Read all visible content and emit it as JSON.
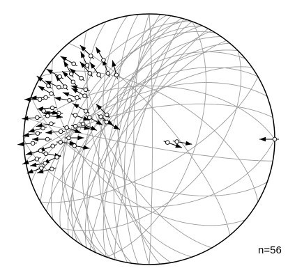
{
  "diagram": {
    "type": "stereonet",
    "count_label": "n=56",
    "colors": {
      "primitive_circle": "#000000",
      "great_circles": "#9a9a9a",
      "pole_fill": "#ffffff",
      "arrow": "#000000"
    },
    "great_circles": [
      {
        "strike": 190,
        "dip": 70
      },
      {
        "strike": 195,
        "dip": 65
      },
      {
        "strike": 200,
        "dip": 72
      },
      {
        "strike": 205,
        "dip": 60
      },
      {
        "strike": 210,
        "dip": 68
      },
      {
        "strike": 185,
        "dip": 75
      },
      {
        "strike": 215,
        "dip": 55
      },
      {
        "strike": 220,
        "dip": 62
      },
      {
        "strike": 180,
        "dip": 80
      },
      {
        "strike": 198,
        "dip": 50
      },
      {
        "strike": 205,
        "dip": 45
      },
      {
        "strike": 212,
        "dip": 40
      },
      {
        "strike": 225,
        "dip": 58
      },
      {
        "strike": 230,
        "dip": 48
      },
      {
        "strike": 188,
        "dip": 58
      },
      {
        "strike": 200,
        "dip": 35
      },
      {
        "strike": 235,
        "dip": 66
      },
      {
        "strike": 175,
        "dip": 70
      },
      {
        "strike": 170,
        "dip": 62
      },
      {
        "strike": 240,
        "dip": 55
      },
      {
        "strike": 196,
        "dip": 82
      },
      {
        "strike": 208,
        "dip": 78
      },
      {
        "strike": 218,
        "dip": 74
      },
      {
        "strike": 250,
        "dip": 60
      },
      {
        "strike": 160,
        "dip": 55
      },
      {
        "strike": 260,
        "dip": 70
      },
      {
        "strike": 150,
        "dip": 65
      },
      {
        "strike": 270,
        "dip": 55
      },
      {
        "strike": 300,
        "dip": 60
      },
      {
        "strike": 130,
        "dip": 50
      },
      {
        "strike": 110,
        "dip": 60
      },
      {
        "strike": 90,
        "dip": 45
      },
      {
        "strike": 320,
        "dip": 75
      },
      {
        "strike": 20,
        "dip": 60
      },
      {
        "strike": 45,
        "dip": 50
      },
      {
        "strike": 0,
        "dip": 88
      },
      {
        "strike": 100,
        "dip": 85
      },
      {
        "strike": 60,
        "dip": 70
      }
    ],
    "poles": [
      {
        "trend": 290,
        "plunge": 8,
        "arrow": 270
      },
      {
        "trend": 292,
        "plunge": 12,
        "arrow": 268
      },
      {
        "trend": 295,
        "plunge": 15,
        "arrow": 300
      },
      {
        "trend": 298,
        "plunge": 10,
        "arrow": 310
      },
      {
        "trend": 300,
        "plunge": 18,
        "arrow": 295
      },
      {
        "trend": 302,
        "plunge": 22,
        "arrow": 320
      },
      {
        "trend": 305,
        "plunge": 14,
        "arrow": 300
      },
      {
        "trend": 307,
        "plunge": 25,
        "arrow": 315
      },
      {
        "trend": 310,
        "plunge": 20,
        "arrow": 330
      },
      {
        "trend": 312,
        "plunge": 28,
        "arrow": 310
      },
      {
        "trend": 315,
        "plunge": 16,
        "arrow": 300
      },
      {
        "trend": 318,
        "plunge": 30,
        "arrow": 320
      },
      {
        "trend": 320,
        "plunge": 24,
        "arrow": 335
      },
      {
        "trend": 322,
        "plunge": 35,
        "arrow": 325
      },
      {
        "trend": 325,
        "plunge": 20,
        "arrow": 315
      },
      {
        "trend": 328,
        "plunge": 38,
        "arrow": 340
      },
      {
        "trend": 330,
        "plunge": 28,
        "arrow": 330
      },
      {
        "trend": 333,
        "plunge": 42,
        "arrow": 345
      },
      {
        "trend": 296,
        "plunge": 30,
        "arrow": 280
      },
      {
        "trend": 300,
        "plunge": 34,
        "arrow": 290
      },
      {
        "trend": 304,
        "plunge": 38,
        "arrow": 300
      },
      {
        "trend": 308,
        "plunge": 36,
        "arrow": 285
      },
      {
        "trend": 288,
        "plunge": 20,
        "arrow": 265
      },
      {
        "trend": 286,
        "plunge": 26,
        "arrow": 270
      },
      {
        "trend": 285,
        "plunge": 14,
        "arrow": 100
      },
      {
        "trend": 283,
        "plunge": 18,
        "arrow": 95
      },
      {
        "trend": 281,
        "plunge": 10,
        "arrow": 265
      },
      {
        "trend": 279,
        "plunge": 22,
        "arrow": 260
      },
      {
        "trend": 276,
        "plunge": 16,
        "arrow": 255
      },
      {
        "trend": 273,
        "plunge": 12,
        "arrow": 260
      },
      {
        "trend": 270,
        "plunge": 20,
        "arrow": 270
      },
      {
        "trend": 268,
        "plunge": 8,
        "arrow": 265
      },
      {
        "trend": 266,
        "plunge": 24,
        "arrow": 250
      },
      {
        "trend": 264,
        "plunge": 14,
        "arrow": 255
      },
      {
        "trend": 262,
        "plunge": 18,
        "arrow": 100
      },
      {
        "trend": 260,
        "plunge": 10,
        "arrow": 250
      },
      {
        "trend": 259,
        "plunge": 26,
        "arrow": 245
      },
      {
        "trend": 257,
        "plunge": 16,
        "arrow": 260
      },
      {
        "trend": 255,
        "plunge": 12,
        "arrow": 250
      },
      {
        "trend": 253,
        "plunge": 20,
        "arrow": 255
      },
      {
        "trend": 278,
        "plunge": 34,
        "arrow": 110
      },
      {
        "trend": 280,
        "plunge": 40,
        "arrow": 100
      },
      {
        "trend": 283,
        "plunge": 45,
        "arrow": 115
      },
      {
        "trend": 290,
        "plunge": 48,
        "arrow": 120
      },
      {
        "trend": 294,
        "plunge": 44,
        "arrow": 300
      },
      {
        "trend": 288,
        "plunge": 38,
        "arrow": 110
      },
      {
        "trend": 275,
        "plunge": 30,
        "arrow": 265
      },
      {
        "trend": 271,
        "plunge": 36,
        "arrow": 90
      },
      {
        "trend": 268,
        "plunge": 30,
        "arrow": 95
      },
      {
        "trend": 265,
        "plunge": 40,
        "arrow": 100
      },
      {
        "trend": 295,
        "plunge": 55,
        "arrow": 125
      },
      {
        "trend": 292,
        "plunge": 60,
        "arrow": 120
      },
      {
        "trend": 300,
        "plunge": 58,
        "arrow": 315
      },
      {
        "trend": 100,
        "plunge": 78,
        "arrow": 110
      },
      {
        "trend": 95,
        "plunge": 72,
        "arrow": 100
      },
      {
        "trend": 90,
        "plunge": 0,
        "arrow": 270
      }
    ]
  }
}
